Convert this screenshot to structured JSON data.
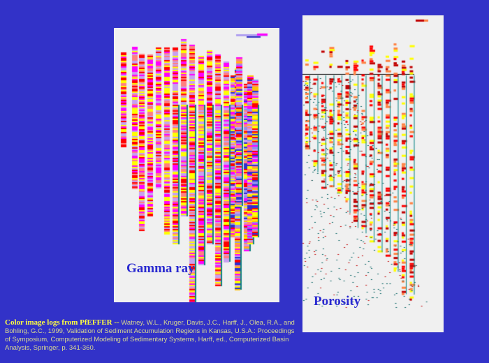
{
  "panels": [
    {
      "label": "Gamma ray",
      "palette": [
        "#ffff00",
        "#ff00ff",
        "#ff0000",
        "#c8a0f0",
        "#ff8080",
        "#3030d0",
        "#ffc000",
        "#9090f0"
      ]
    },
    {
      "label": "Porosity",
      "palette": [
        "#c00000",
        "#ff0000",
        "#ff8040",
        "#ffff00",
        "#008080",
        "#ffffff"
      ]
    }
  ],
  "caption": {
    "title": "Color image logs from PfEFFER --",
    "text": " Watney, W.L., Kruger, Davis, J.C., Harff, J., Olea, R.A., and Bohling, G.C., 1999, Validation of Sediment Accumulation Regions in Kansas, U.S.A.: Proceedings of Symposium, Computerized Modeling of Sedimentary Systems, Harff, ed., Computerized Basin Analysis, Springer, p. 341-360."
  }
}
